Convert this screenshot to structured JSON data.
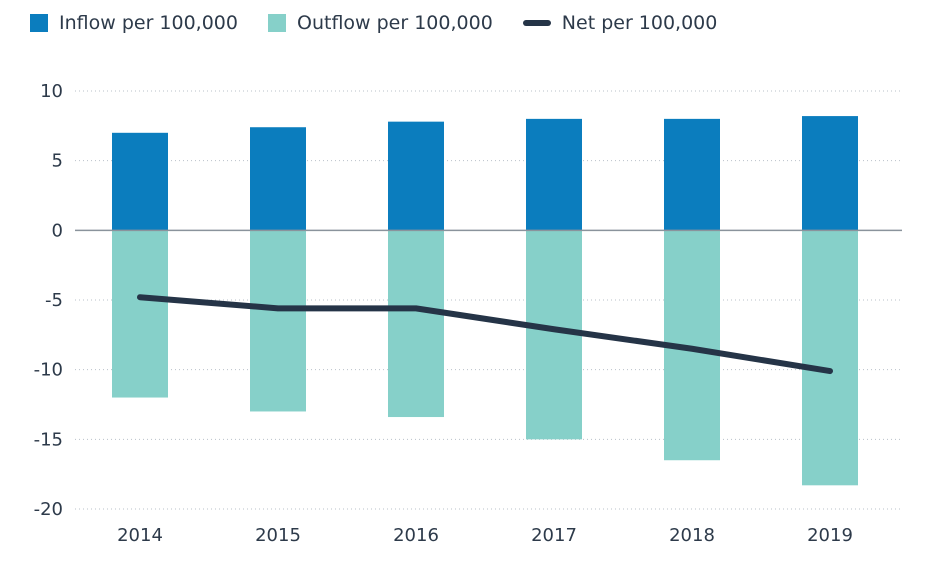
{
  "chart_data": {
    "type": "bar",
    "categories": [
      "2014",
      "2015",
      "2016",
      "2017",
      "2018",
      "2019"
    ],
    "series": [
      {
        "name": "Inflow per 100,000",
        "type": "bar",
        "color": "#0b7dbe",
        "values": [
          7.0,
          7.4,
          7.8,
          8.0,
          8.0,
          8.2
        ]
      },
      {
        "name": "Outflow per 100,000",
        "type": "bar",
        "color": "#86d0c9",
        "values": [
          -12.0,
          -13.0,
          -13.4,
          -15.0,
          -16.5,
          -18.3
        ]
      },
      {
        "name": "Net per 100,000",
        "type": "line",
        "color": "#253447",
        "values": [
          -4.8,
          -5.6,
          -5.6,
          -7.1,
          -8.5,
          -10.1
        ]
      }
    ],
    "ylim": [
      -20,
      10
    ],
    "yticks": [
      "10",
      "5",
      "0",
      "-5",
      "-10",
      "-15",
      "-20"
    ],
    "grid": "dotted horizontal",
    "legend_position": "top-left"
  }
}
